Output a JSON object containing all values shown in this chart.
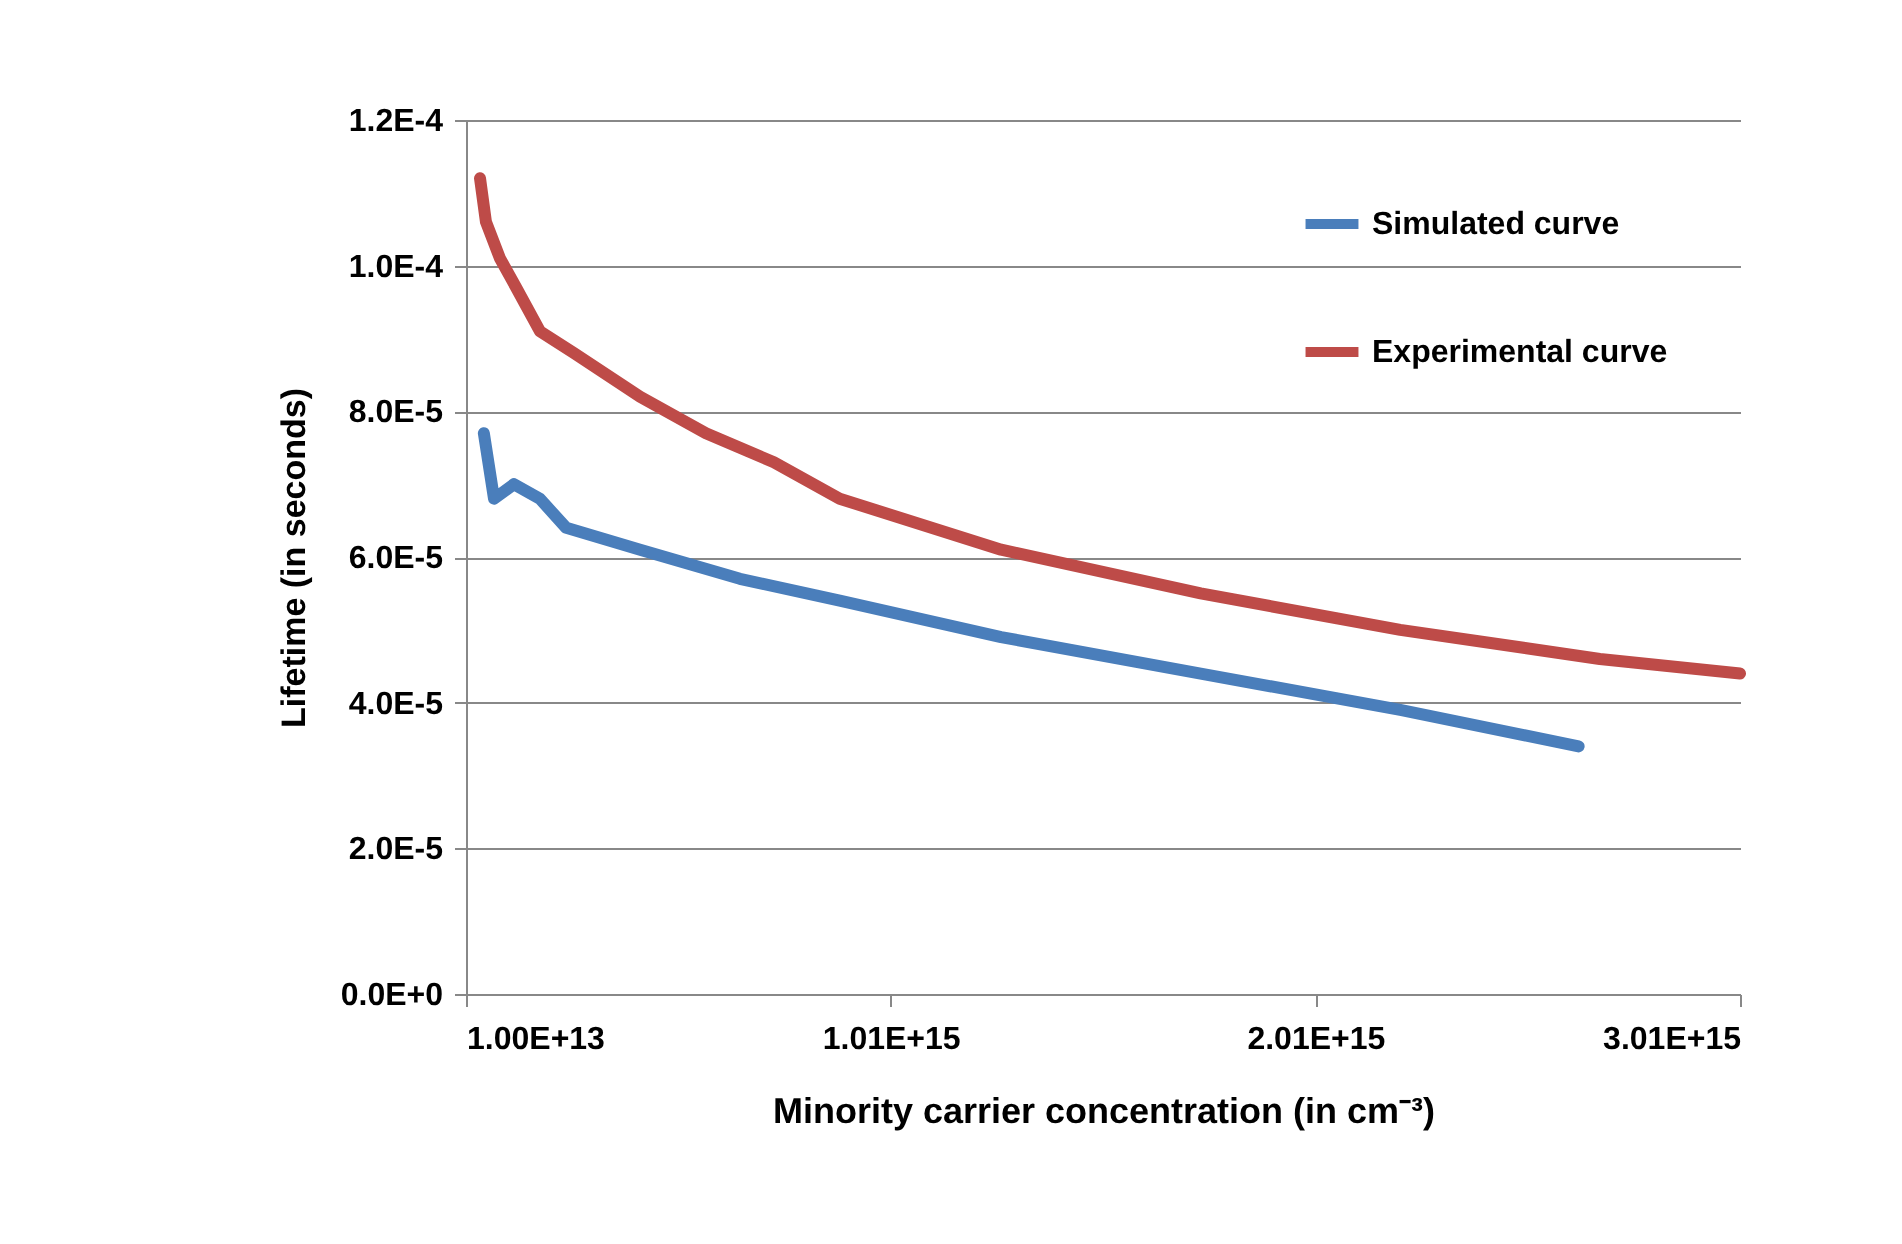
{
  "chart_data": {
    "type": "line",
    "xlabel": "Minority carrier concentration (in cm⁻³)",
    "ylabel": "Lifetime (in seconds)",
    "xlim": [
      10000000000000.0,
      3010000000000000.0
    ],
    "xticks": [
      {
        "value": 10000000000000.0,
        "label": "1.00E+13"
      },
      {
        "value": 1010000000000000.0,
        "label": "1.01E+15"
      },
      {
        "value": 2010000000000000.0,
        "label": "2.01E+15"
      },
      {
        "value": 3010000000000000.0,
        "label": "3.01E+15"
      }
    ],
    "ylim": [
      0,
      0.00012
    ],
    "yticks": [
      {
        "value": 0,
        "label": "0.0E+0"
      },
      {
        "value": 2e-05,
        "label": "2.0E-5"
      },
      {
        "value": 4e-05,
        "label": "4.0E-5"
      },
      {
        "value": 6e-05,
        "label": "6.0E-5"
      },
      {
        "value": 8e-05,
        "label": "8.0E-5"
      },
      {
        "value": 0.0001,
        "label": "1.0E-4"
      },
      {
        "value": 0.00012,
        "label": "1.2E-4"
      }
    ],
    "grid": "y",
    "legend": "top right",
    "marker": "none",
    "line_style": "solid",
    "series": [
      {
        "name": "Simulated curve",
        "color": "#4a7ebb",
        "x": [
          52000000000000.0,
          76000000000000.0,
          123000000000000.0,
          184000000000000.0,
          246000000000000.0,
          420000000000000.0,
          655000000000000.0,
          890000000000000.0,
          1270000000000000.0,
          1740000000000000.0,
          2210000000000000.0,
          2630000000000000.0
        ],
        "values": [
          7.7e-05,
          6.8e-05,
          7e-05,
          6.8e-05,
          6.4e-05,
          6.1e-05,
          5.7e-05,
          5.4e-05,
          4.9e-05,
          4.4e-05,
          3.9e-05,
          3.4e-05
        ]
      },
      {
        "name": "Experimental curve",
        "color": "#be4b48",
        "x": [
          43000000000000.0,
          57000000000000.0,
          90000000000000.0,
          128000000000000.0,
          184000000000000.0,
          264000000000000.0,
          420000000000000.0,
          575000000000000.0,
          735000000000000.0,
          890000000000000.0,
          1270000000000000.0,
          1740000000000000.0,
          2210000000000000.0,
          2680000000000000.0,
          3010000000000000.0
        ],
        "values": [
          0.000112,
          0.000106,
          0.000101,
          9.7e-05,
          9.1e-05,
          8.8e-05,
          8.2e-05,
          7.7e-05,
          7.3e-05,
          6.8e-05,
          6.1e-05,
          5.5e-05,
          5e-05,
          4.6e-05,
          4.4e-05
        ]
      }
    ]
  }
}
